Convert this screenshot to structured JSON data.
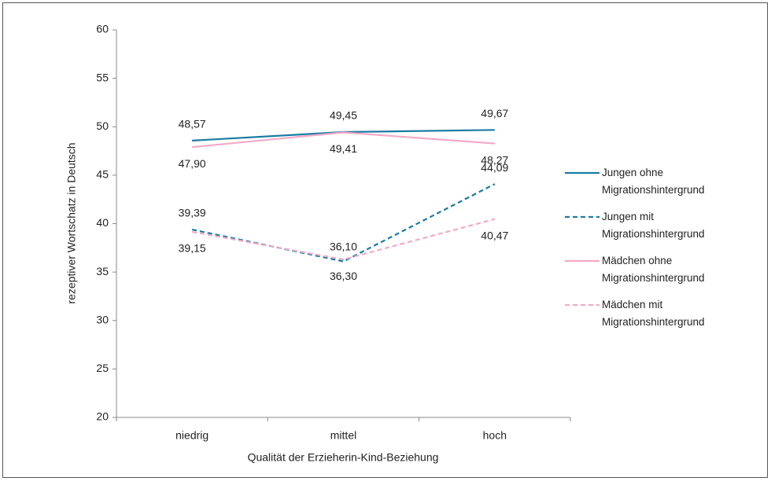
{
  "chart_data": {
    "type": "line",
    "x_label": "Qualität der Erzieherin-Kind-Beziehung",
    "y_label": "rezeptiver Wortschatz in Deutsch",
    "categories": [
      "niedrig",
      "mittel",
      "hoch"
    ],
    "ylim": [
      20,
      60
    ],
    "yticks": [
      20,
      25,
      30,
      35,
      40,
      45,
      50,
      55,
      60
    ],
    "series": [
      {
        "name": "Jungen ohne Migrationshintergrund",
        "color": "#1a7ca3",
        "dash": false,
        "values": [
          48.57,
          49.45,
          49.67
        ],
        "value_labels": [
          "48,57",
          "49,45",
          "49,67"
        ]
      },
      {
        "name": "Jungen mit Migrationshintergrund",
        "color": "#1a7ca3",
        "dash": true,
        "values": [
          39.39,
          36.1,
          44.09
        ],
        "value_labels": [
          "39,39",
          "36,10",
          "44,09"
        ]
      },
      {
        "name": "Mädchen ohne Migrationshintergrund",
        "color": "#f4a9c8",
        "dash": false,
        "values": [
          47.9,
          49.41,
          48.27
        ],
        "value_labels": [
          "47,90",
          "49,41",
          "48,27"
        ]
      },
      {
        "name": "Mädchen mit Migrationshintergrund",
        "color": "#f4a9c8",
        "dash": true,
        "values": [
          39.15,
          36.3,
          40.47
        ],
        "value_labels": [
          "39,15",
          "36,30",
          "40,47"
        ]
      }
    ]
  }
}
